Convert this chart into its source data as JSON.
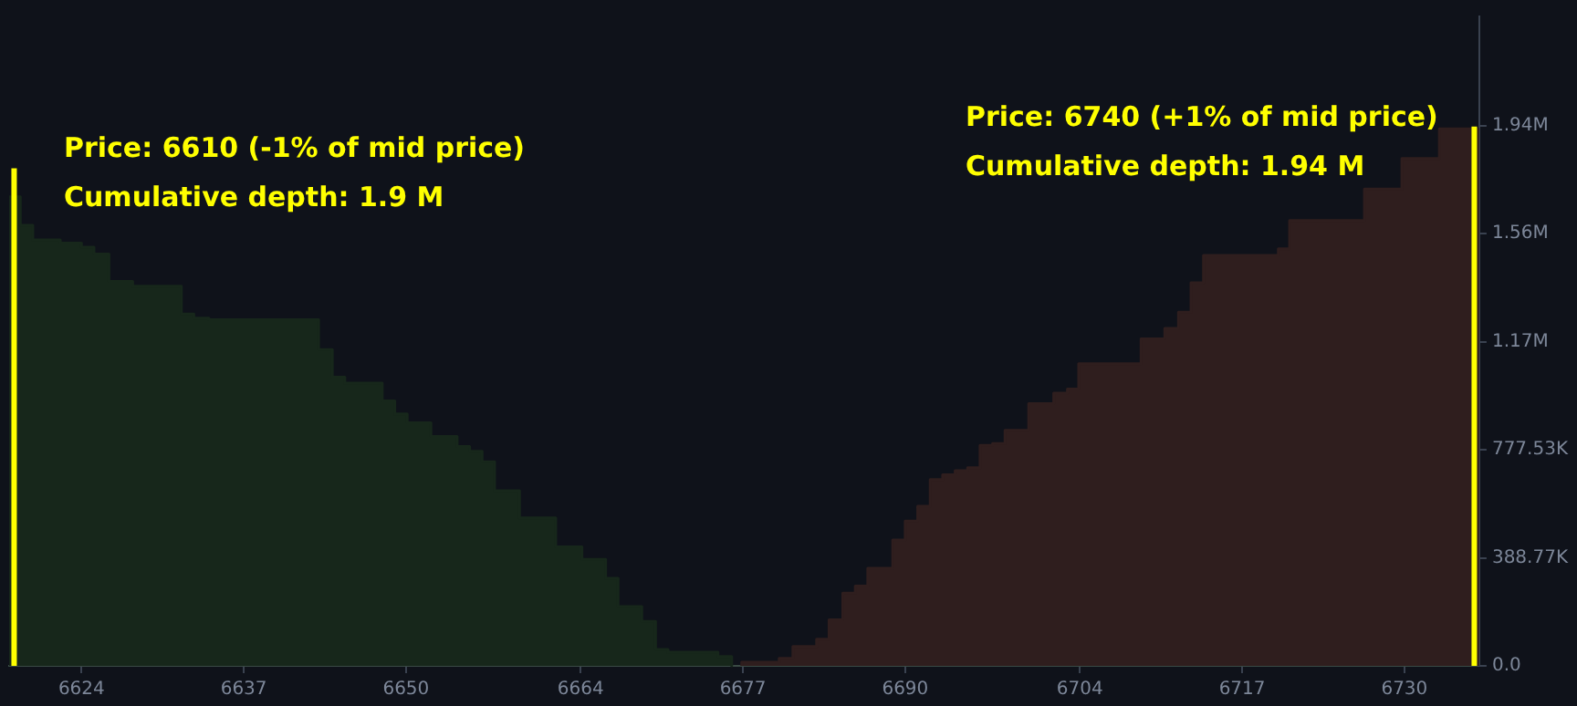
{
  "chart_data": {
    "type": "area",
    "annotations": [
      "Price: 6610 (-1% of mid price)\nCumulative depth: 1.9 M",
      "Price: 6740 (+1% of mid price)\nCumulative depth: 1.94 M"
    ],
    "xlim": [
      6618.2,
      6736
    ],
    "xticks": [
      6624,
      6637,
      6650,
      6664,
      6677,
      6690,
      6704,
      6717,
      6730
    ],
    "ylim": [
      0,
      2336000
    ],
    "yticks": [
      {
        "value": 0,
        "label": "0.0"
      },
      {
        "value": 388770,
        "label": "388.77K"
      },
      {
        "value": 777530,
        "label": "777.53K"
      },
      {
        "value": 1166300,
        "label": "1.17M"
      },
      {
        "value": 1555060,
        "label": "1.56M"
      },
      {
        "value": 1943830,
        "label": "1.94M"
      }
    ],
    "grid": false,
    "legend": false,
    "series": [
      {
        "color": "#17271b",
        "x": [
          6618.2,
          6619.1,
          6619.1,
          6620.1,
          6620.1,
          6622.3,
          6622.3,
          6624,
          6624,
          6625,
          6625,
          6626.2,
          6626.2,
          6628.1,
          6628.1,
          6632,
          6632,
          6633,
          6633,
          6634.2,
          6634.2,
          6643,
          6643,
          6644.1,
          6644.1,
          6645.1,
          6645.1,
          6648.1,
          6648.1,
          6649.1,
          6649.1,
          6650.1,
          6650.1,
          6652,
          6652,
          6654.1,
          6654.1,
          6655.1,
          6655.1,
          6656.1,
          6656.1,
          6657.1,
          6657.1,
          6659.1,
          6659.1,
          6662,
          6662,
          6664.1,
          6664.1,
          6666,
          6666,
          6667,
          6667,
          6668.9,
          6668.9,
          6670,
          6670,
          6671,
          6671,
          6675,
          6675,
          6676.1,
          6676.1
        ],
        "values": [
          1687000,
          1687000,
          1585000,
          1585000,
          1532000,
          1532000,
          1521000,
          1521000,
          1506000,
          1506000,
          1481000,
          1481000,
          1383000,
          1383000,
          1366000,
          1366000,
          1266000,
          1266000,
          1251000,
          1251000,
          1245000,
          1245000,
          1138000,
          1138000,
          1038000,
          1038000,
          1017000,
          1017000,
          953000,
          953000,
          906000,
          906000,
          874000,
          874000,
          825000,
          825000,
          789000,
          789000,
          772000,
          772000,
          734000,
          734000,
          630000,
          630000,
          532000,
          532000,
          428000,
          428000,
          383000,
          383000,
          315000,
          315000,
          213000,
          213000,
          160000,
          160000,
          59000,
          59000,
          49000,
          49000,
          34000,
          34000,
          0
        ]
      },
      {
        "color": "#2f1e1e",
        "x": [
          6676.9,
          6676.9,
          6679.9,
          6679.9,
          6681,
          6681,
          6682.9,
          6682.9,
          6683.9,
          6683.9,
          6685,
          6685,
          6686,
          6686,
          6687,
          6687,
          6689,
          6689,
          6690,
          6690,
          6691,
          6691,
          6692,
          6692,
          6693,
          6693,
          6694,
          6694,
          6695,
          6695,
          6696,
          6696,
          6697,
          6697,
          6698,
          6698,
          6699.9,
          6699.9,
          6701.9,
          6701.9,
          6703,
          6703,
          6703.9,
          6703.9,
          6708.9,
          6708.9,
          6710.8,
          6710.8,
          6711.9,
          6711.9,
          6712.9,
          6712.9,
          6713.9,
          6713.9,
          6719.9,
          6719.9,
          6720.8,
          6720.8,
          6726.8,
          6726.8,
          6729.8,
          6729.8,
          6732.8,
          6732.8,
          6736
        ],
        "values": [
          0,
          13000,
          13000,
          27000,
          27000,
          70000,
          70000,
          96000,
          96000,
          166000,
          166000,
          262000,
          262000,
          287000,
          287000,
          351000,
          351000,
          453000,
          453000,
          521000,
          521000,
          574000,
          574000,
          670000,
          670000,
          687000,
          687000,
          702000,
          702000,
          713000,
          713000,
          793000,
          793000,
          800000,
          800000,
          847000,
          847000,
          943000,
          943000,
          981000,
          981000,
          996000,
          996000,
          1087000,
          1087000,
          1176000,
          1176000,
          1214000,
          1214000,
          1272000,
          1272000,
          1378000,
          1378000,
          1476000,
          1476000,
          1500000,
          1500000,
          1602000,
          1602000,
          1715000,
          1715000,
          1825000,
          1825000,
          1932000,
          1932000
        ]
      },
      {
        "type": "line",
        "color": "#ffff00",
        "x": [
          6618.6,
          6618.6
        ],
        "values": [
          0,
          1790000
        ]
      },
      {
        "type": "line",
        "color": "#ffff00",
        "x": [
          6735.6,
          6735.6
        ],
        "values": [
          0,
          1940000
        ]
      }
    ]
  }
}
